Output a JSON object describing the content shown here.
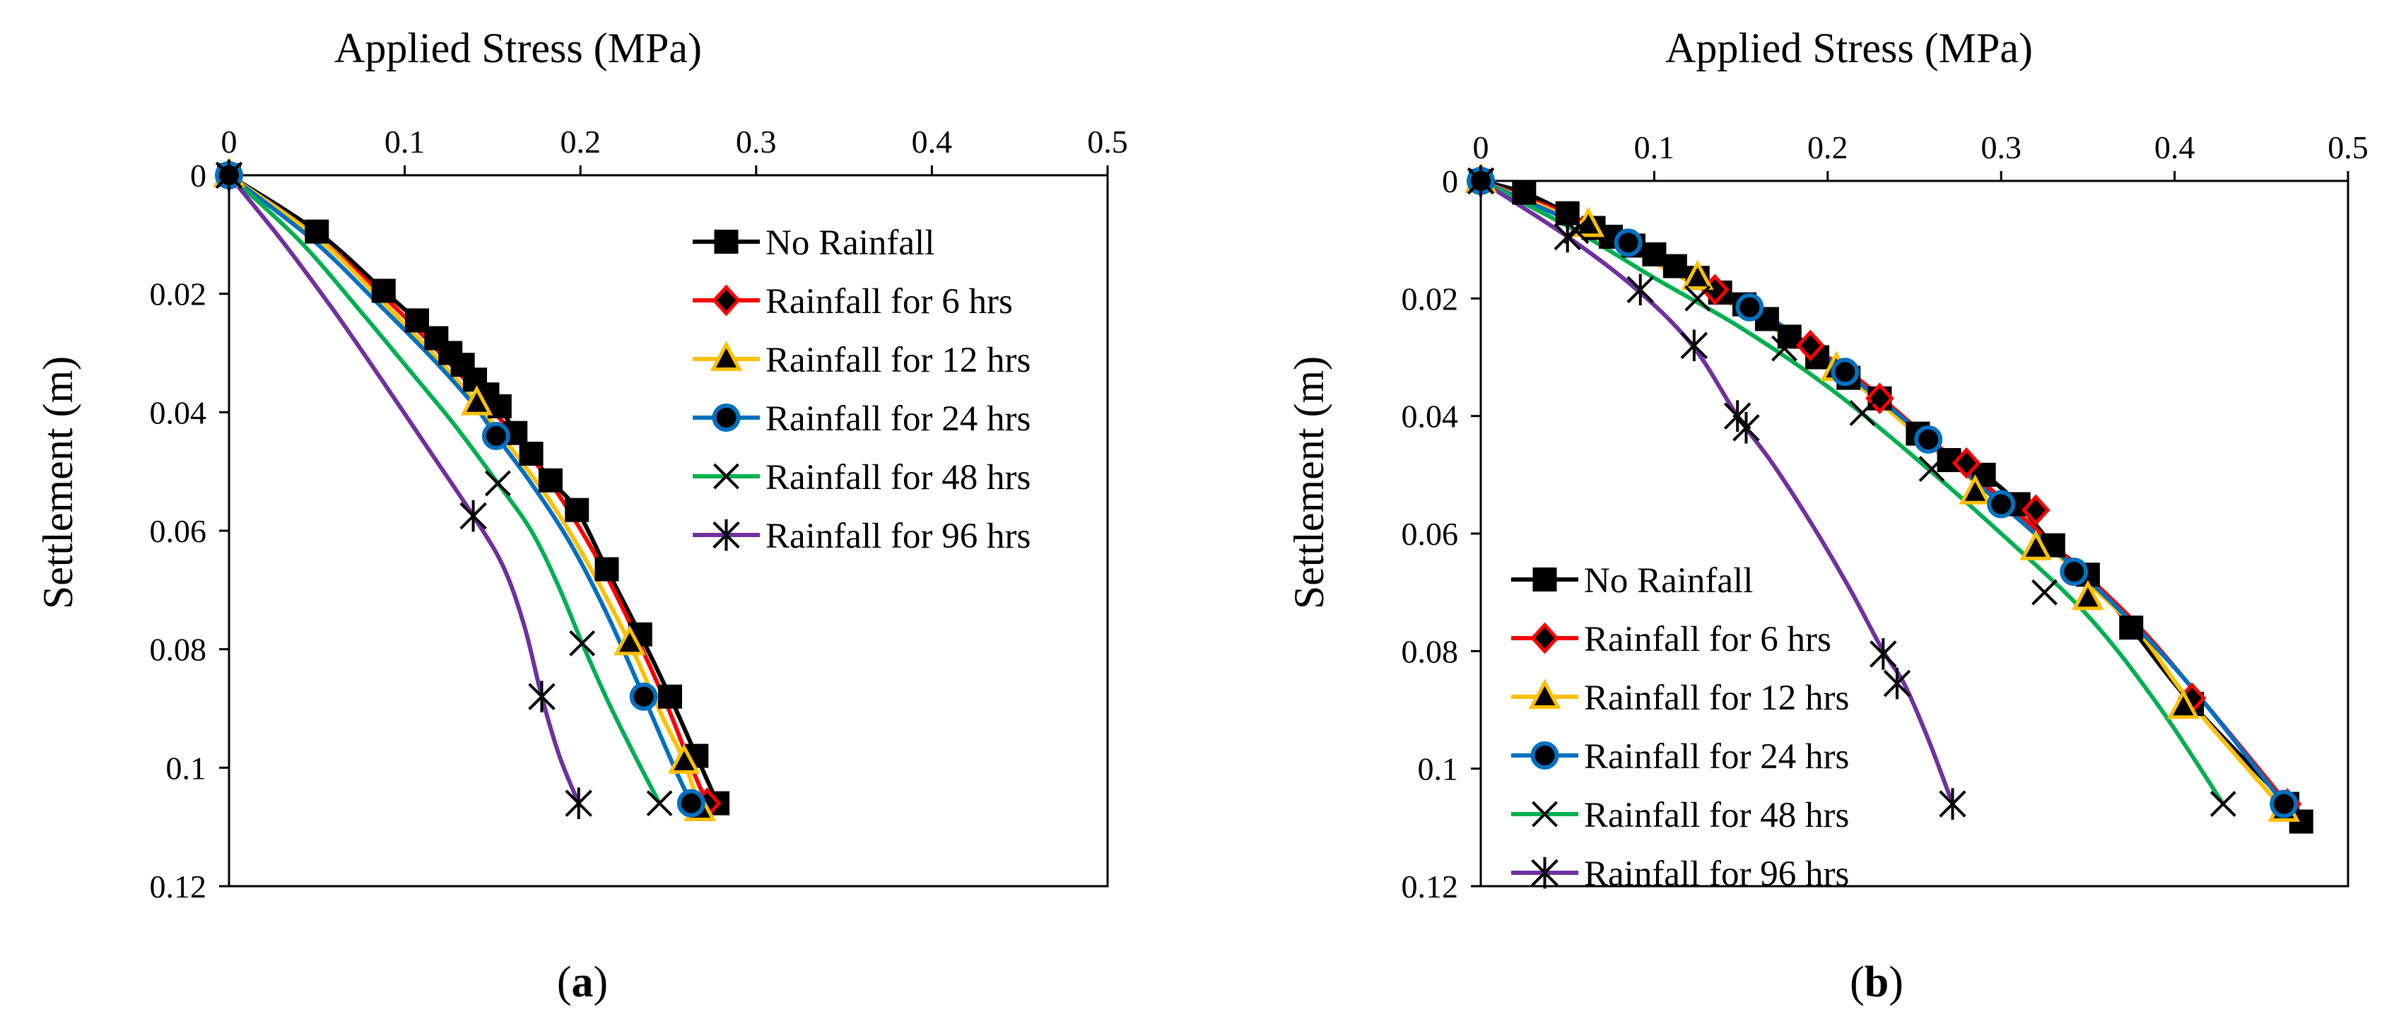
{
  "figure": {
    "panels": [
      {
        "id": "a",
        "caption_letter": "a",
        "legend_placement": "top-right"
      },
      {
        "id": "b",
        "caption_letter": "b",
        "legend_placement": "bottom-left"
      }
    ]
  },
  "colors": {
    "no_rainfall": "#000000",
    "rain_6": "#ff0000",
    "rain_12": "#ffc000",
    "rain_24": "#0070c0",
    "rain_48": "#00b050",
    "rain_96": "#7030a0"
  },
  "chart_data": [
    {
      "type": "line",
      "panel": "a",
      "title": "",
      "xlabel": "Applied Stress (MPa)",
      "ylabel": "Settlement (m)",
      "xlim": [
        0,
        0.5
      ],
      "ylim": [
        0,
        0.12
      ],
      "y_inverted": true,
      "x_axis_position": "top",
      "grid": false,
      "legend": "top-right",
      "xticks": [
        "0",
        "0.1",
        "0.2",
        "0.3",
        "0.4",
        "0.5"
      ],
      "yticks": [
        "0",
        "0.02",
        "0.04",
        "0.06",
        "0.08",
        "0.1",
        "0.12"
      ],
      "series": [
        {
          "name": "No Rainfall",
          "color": "#000000",
          "marker": "square",
          "x": [
            0,
            0.05,
            0.088,
            0.107,
            0.118,
            0.126,
            0.133,
            0.14,
            0.147,
            0.154,
            0.163,
            0.172,
            0.183,
            0.198,
            0.215,
            0.234,
            0.251,
            0.266,
            0.278
          ],
          "y": [
            0,
            0.0095,
            0.0195,
            0.0245,
            0.0275,
            0.03,
            0.032,
            0.0345,
            0.037,
            0.039,
            0.0435,
            0.047,
            0.0515,
            0.0565,
            0.0665,
            0.0775,
            0.088,
            0.098,
            0.106
          ],
          "markers_x": [
            0,
            0.05,
            0.088,
            0.107,
            0.118,
            0.126,
            0.133,
            0.14,
            0.147,
            0.154,
            0.163,
            0.172,
            0.183,
            0.198,
            0.215,
            0.234,
            0.251,
            0.266,
            0.278
          ],
          "markers_y": [
            0,
            0.0095,
            0.0195,
            0.0245,
            0.0275,
            0.03,
            0.032,
            0.0345,
            0.037,
            0.039,
            0.0435,
            0.047,
            0.0515,
            0.0565,
            0.0665,
            0.0775,
            0.088,
            0.098,
            0.106
          ]
        },
        {
          "name": "Rainfall for 6 hrs",
          "color": "#ff0000",
          "marker": "diamond",
          "x": [
            0,
            0.05,
            0.09,
            0.12,
            0.145,
            0.168,
            0.19,
            0.212,
            0.232,
            0.25,
            0.262,
            0.272
          ],
          "y": [
            0,
            0.0105,
            0.021,
            0.03,
            0.038,
            0.046,
            0.055,
            0.066,
            0.078,
            0.09,
            0.099,
            0.106
          ],
          "markers_x": [
            0,
            0.272
          ],
          "markers_y": [
            0,
            0.106
          ]
        },
        {
          "name": "Rainfall for 12 hrs",
          "color": "#ffc000",
          "marker": "triangle",
          "x": [
            0,
            0.05,
            0.088,
            0.117,
            0.141,
            0.163,
            0.185,
            0.207,
            0.228,
            0.246,
            0.259,
            0.268
          ],
          "y": [
            0,
            0.0105,
            0.0215,
            0.0305,
            0.0385,
            0.047,
            0.056,
            0.067,
            0.079,
            0.091,
            0.099,
            0.107
          ],
          "markers_x": [
            0,
            0.141,
            0.228,
            0.259,
            0.268
          ],
          "markers_y": [
            0,
            0.0385,
            0.079,
            0.099,
            0.107
          ]
        },
        {
          "name": "Rainfall for 24 hrs",
          "color": "#0070c0",
          "marker": "circle",
          "x": [
            0,
            0.048,
            0.086,
            0.116,
            0.14,
            0.152,
            0.172,
            0.194,
            0.215,
            0.236,
            0.252,
            0.263
          ],
          "y": [
            0,
            0.011,
            0.022,
            0.031,
            0.039,
            0.044,
            0.052,
            0.062,
            0.074,
            0.088,
            0.099,
            0.106
          ],
          "markers_x": [
            0,
            0.152,
            0.236,
            0.263
          ],
          "markers_y": [
            0,
            0.044,
            0.088,
            0.106
          ]
        },
        {
          "name": "Rainfall for 48 hrs",
          "color": "#00b050",
          "marker": "x",
          "x": [
            0,
            0.04,
            0.075,
            0.103,
            0.128,
            0.153,
            0.172,
            0.187,
            0.201,
            0.216,
            0.231,
            0.245
          ],
          "y": [
            0,
            0.011,
            0.023,
            0.033,
            0.042,
            0.052,
            0.06,
            0.069,
            0.079,
            0.089,
            0.098,
            0.106
          ],
          "markers_x": [
            0,
            0.153,
            0.201,
            0.245
          ],
          "markers_y": [
            0,
            0.052,
            0.079,
            0.106
          ]
        },
        {
          "name": "Rainfall for 96 hrs",
          "color": "#7030a0",
          "marker": "star",
          "x": [
            0,
            0.03,
            0.06,
            0.088,
            0.113,
            0.139,
            0.156,
            0.168,
            0.178,
            0.188,
            0.199
          ],
          "y": [
            0,
            0.011,
            0.023,
            0.035,
            0.046,
            0.0575,
            0.066,
            0.076,
            0.088,
            0.098,
            0.106
          ],
          "markers_x": [
            0,
            0.139,
            0.178,
            0.199
          ],
          "markers_y": [
            0,
            0.0575,
            0.088,
            0.106
          ]
        }
      ]
    },
    {
      "type": "line",
      "panel": "b",
      "title": "",
      "xlabel": "Applied Stress (MPa)",
      "ylabel": "Settlement (m)",
      "xlim": [
        0,
        0.5
      ],
      "ylim": [
        0,
        0.12
      ],
      "y_inverted": true,
      "x_axis_position": "top",
      "grid": false,
      "legend": "bottom-left",
      "xticks": [
        "0",
        "0.1",
        "0.2",
        "0.3",
        "0.4",
        "0.5"
      ],
      "yticks": [
        "0",
        "0.02",
        "0.04",
        "0.06",
        "0.08",
        "0.1",
        "0.12"
      ],
      "series": [
        {
          "name": "No Rainfall",
          "color": "#000000",
          "marker": "square",
          "x": [
            0,
            0.025,
            0.05,
            0.065,
            0.075,
            0.088,
            0.1,
            0.112,
            0.125,
            0.138,
            0.152,
            0.165,
            0.178,
            0.194,
            0.212,
            0.23,
            0.252,
            0.27,
            0.29,
            0.31,
            0.33,
            0.35,
            0.375,
            0.41,
            0.465,
            0.473
          ],
          "y": [
            0,
            0.002,
            0.0055,
            0.008,
            0.0095,
            0.011,
            0.0125,
            0.0145,
            0.0165,
            0.019,
            0.021,
            0.0235,
            0.0265,
            0.03,
            0.0335,
            0.037,
            0.043,
            0.0475,
            0.05,
            0.055,
            0.062,
            0.067,
            0.076,
            0.089,
            0.106,
            0.109
          ],
          "markers_x": [
            0,
            0.025,
            0.05,
            0.065,
            0.075,
            0.088,
            0.1,
            0.112,
            0.125,
            0.138,
            0.152,
            0.165,
            0.178,
            0.194,
            0.212,
            0.23,
            0.252,
            0.27,
            0.29,
            0.31,
            0.33,
            0.35,
            0.375,
            0.41,
            0.465,
            0.473
          ],
          "markers_y": [
            0,
            0.002,
            0.0055,
            0.008,
            0.0095,
            0.011,
            0.0125,
            0.0145,
            0.0165,
            0.019,
            0.021,
            0.0235,
            0.0265,
            0.03,
            0.0335,
            0.037,
            0.043,
            0.0475,
            0.05,
            0.055,
            0.062,
            0.067,
            0.076,
            0.089,
            0.106,
            0.109
          ]
        },
        {
          "name": "Rainfall for 6 hrs",
          "color": "#ff0000",
          "marker": "diamond",
          "x": [
            0,
            0.06,
            0.11,
            0.16,
            0.21,
            0.255,
            0.3,
            0.345,
            0.38,
            0.415,
            0.465
          ],
          "y": [
            0,
            0.007,
            0.015,
            0.023,
            0.032,
            0.043,
            0.054,
            0.066,
            0.076,
            0.088,
            0.106
          ],
          "markers_x": [
            0,
            0.135,
            0.19,
            0.23,
            0.28,
            0.32,
            0.41,
            0.465
          ],
          "markers_y": [
            0,
            0.0185,
            0.028,
            0.037,
            0.048,
            0.056,
            0.088,
            0.106
          ]
        },
        {
          "name": "Rainfall for 12 hrs",
          "color": "#ffc000",
          "marker": "triangle",
          "x": [
            0,
            0.06,
            0.11,
            0.16,
            0.21,
            0.255,
            0.3,
            0.345,
            0.38,
            0.41,
            0.463
          ],
          "y": [
            0,
            0.0075,
            0.0155,
            0.0235,
            0.033,
            0.044,
            0.055,
            0.067,
            0.077,
            0.089,
            0.107
          ],
          "markers_x": [
            0,
            0.062,
            0.125,
            0.205,
            0.285,
            0.32,
            0.35,
            0.405,
            0.463
          ],
          "markers_y": [
            0,
            0.0075,
            0.0165,
            0.032,
            0.053,
            0.0625,
            0.071,
            0.0895,
            0.107
          ]
        },
        {
          "name": "Rainfall for 24 hrs",
          "color": "#0070c0",
          "marker": "circle",
          "x": [
            0,
            0.08,
            0.12,
            0.16,
            0.21,
            0.258,
            0.3,
            0.345,
            0.38,
            0.415,
            0.463
          ],
          "y": [
            0,
            0.0105,
            0.016,
            0.022,
            0.0325,
            0.044,
            0.055,
            0.0665,
            0.0765,
            0.088,
            0.106
          ],
          "markers_x": [
            0,
            0.085,
            0.155,
            0.21,
            0.258,
            0.3,
            0.342,
            0.463
          ],
          "markers_y": [
            0,
            0.0105,
            0.0215,
            0.0325,
            0.044,
            0.055,
            0.0665,
            0.106
          ]
        },
        {
          "name": "Rainfall for 48 hrs",
          "color": "#00b050",
          "marker": "x",
          "x": [
            0,
            0.055,
            0.1,
            0.15,
            0.2,
            0.25,
            0.3,
            0.35,
            0.39,
            0.428
          ],
          "y": [
            0,
            0.0085,
            0.0165,
            0.025,
            0.035,
            0.047,
            0.06,
            0.074,
            0.089,
            0.106
          ],
          "markers_x": [
            0,
            0.055,
            0.125,
            0.175,
            0.22,
            0.26,
            0.325,
            0.428
          ],
          "markers_y": [
            0,
            0.0085,
            0.02,
            0.0285,
            0.0395,
            0.049,
            0.07,
            0.106
          ]
        },
        {
          "name": "Rainfall for 96 hrs",
          "color": "#7030a0",
          "marker": "star",
          "x": [
            0,
            0.05,
            0.09,
            0.122,
            0.148,
            0.168,
            0.19,
            0.212,
            0.232,
            0.244,
            0.258,
            0.272
          ],
          "y": [
            0,
            0.0095,
            0.0185,
            0.028,
            0.04,
            0.048,
            0.058,
            0.069,
            0.08,
            0.0855,
            0.095,
            0.106
          ],
          "markers_x": [
            0,
            0.05,
            0.092,
            0.123,
            0.148,
            0.153,
            0.232,
            0.24,
            0.272
          ],
          "markers_y": [
            0,
            0.0095,
            0.0185,
            0.028,
            0.04,
            0.042,
            0.0805,
            0.0855,
            0.106
          ]
        }
      ]
    }
  ]
}
